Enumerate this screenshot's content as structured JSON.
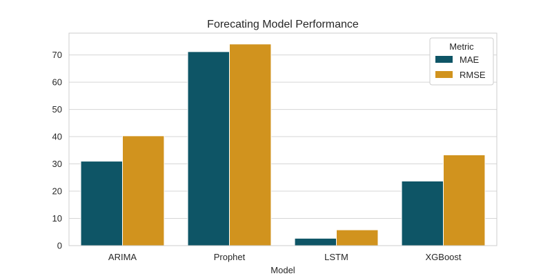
{
  "chart_data": {
    "type": "bar",
    "title": "Forecating Model Performance",
    "xlabel": "Model",
    "ylabel": "",
    "categories": [
      "ARIMA",
      "Prophet",
      "LSTM",
      "XGBoost"
    ],
    "series": [
      {
        "name": "MAE",
        "color": "#0e5566",
        "values": [
          31.0,
          71.2,
          2.7,
          23.7
        ]
      },
      {
        "name": "RMSE",
        "color": "#d1931e",
        "values": [
          40.3,
          74.0,
          5.8,
          33.3
        ]
      }
    ],
    "ylim": [
      0,
      78
    ],
    "yticks": [
      "0",
      "10",
      "20",
      "30",
      "40",
      "50",
      "60",
      "70"
    ],
    "grid": true,
    "legend": {
      "title": "Metric",
      "placement": "top-right"
    }
  }
}
